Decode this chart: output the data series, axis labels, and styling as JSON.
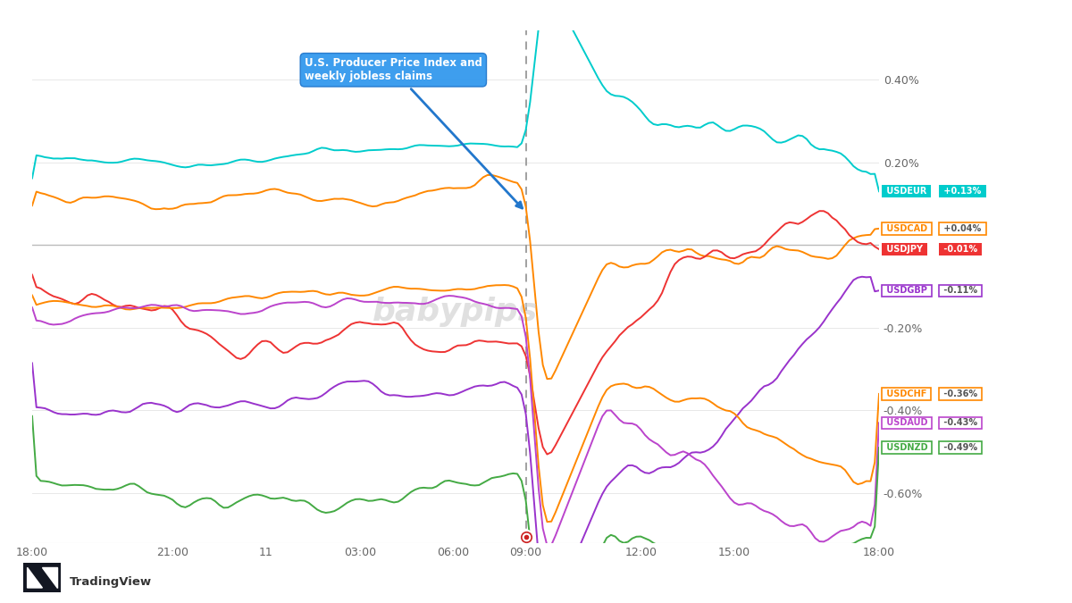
{
  "background_color": "#ffffff",
  "plot_bg_color": "#ffffff",
  "grid_color": "#e8e8e8",
  "zero_line_color": "#bbbbbb",
  "dashed_line_color": "#999999",
  "x_labels": [
    "18:00",
    "21:00",
    "11",
    "03:00",
    "06:00",
    "09:00",
    "12:00",
    "15:00",
    "18:00"
  ],
  "y_right_labels": [
    "-0.60%",
    "-0.40%",
    "-0.20%",
    "",
    "0.20%",
    "0.40%"
  ],
  "annotation_text": "U.S. Producer Price Index and\nweekly jobless claims",
  "watermark": "babypips",
  "series": [
    {
      "name": "USDEUR",
      "color": "#00cccc",
      "final_value": "+0.13%",
      "filled": true,
      "fill_color": "#00cccc",
      "text_color": "#ffffff",
      "val_color": "#00cccc"
    },
    {
      "name": "USDCAD",
      "color": "#ff8800",
      "final_value": "+0.04%",
      "filled": false,
      "fill_color": "#ff8800",
      "text_color": "#ff8800",
      "val_color": "#ff8800"
    },
    {
      "name": "USDJPY",
      "color": "#ee3333",
      "final_value": "-0.01%",
      "filled": true,
      "fill_color": "#ee3333",
      "text_color": "#ffffff",
      "val_color": "#ee3333"
    },
    {
      "name": "USDGBP",
      "color": "#9933cc",
      "final_value": "-0.11%",
      "filled": false,
      "fill_color": "#9933cc",
      "text_color": "#9933cc",
      "val_color": "#555555"
    },
    {
      "name": "USDCHF",
      "color": "#ff8800",
      "final_value": "-0.36%",
      "filled": false,
      "fill_color": "#ff8800",
      "text_color": "#ff8800",
      "val_color": "#555555"
    },
    {
      "name": "USDAUD",
      "color": "#bb44cc",
      "final_value": "-0.43%",
      "filled": false,
      "fill_color": "#bb44cc",
      "text_color": "#bb44cc",
      "val_color": "#555555"
    },
    {
      "name": "USDNZD",
      "color": "#44aa44",
      "final_value": "-0.49%",
      "filled": false,
      "fill_color": "#44aa44",
      "text_color": "#44aa44",
      "val_color": "#555555"
    }
  ],
  "y_min": -0.0072,
  "y_max": 0.0052,
  "N": 200,
  "dash_i": 116
}
